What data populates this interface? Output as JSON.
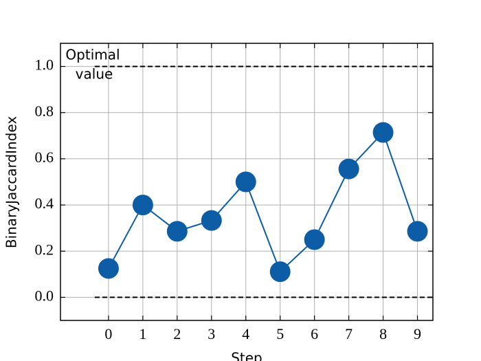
{
  "chart_data": {
    "type": "line",
    "x": [
      0,
      1,
      2,
      3,
      4,
      5,
      6,
      7,
      8,
      9
    ],
    "series": [
      {
        "color": "#0c5da5",
        "values": [
          0.125,
          0.4,
          0.286,
          0.333,
          0.5,
          0.111,
          0.25,
          0.556,
          0.714,
          0.286
        ]
      }
    ],
    "xlim": [
      -1.4,
      9.45
    ],
    "ylim": [
      -0.1,
      1.1
    ],
    "xticks": [
      0,
      1,
      2,
      3,
      4,
      5,
      6,
      7,
      8,
      9
    ],
    "yticks": [
      {
        "value": 0,
        "label": "0.0"
      },
      0.2,
      0.4,
      0.6,
      0.8,
      {
        "value": 1,
        "label": "1.0"
      }
    ],
    "xlabel": "Step",
    "ylabel": "BinaryJaccardIndex",
    "hlines": [
      1,
      0
    ],
    "annotation": [
      "Optimal",
      "value"
    ],
    "grid": true
  }
}
